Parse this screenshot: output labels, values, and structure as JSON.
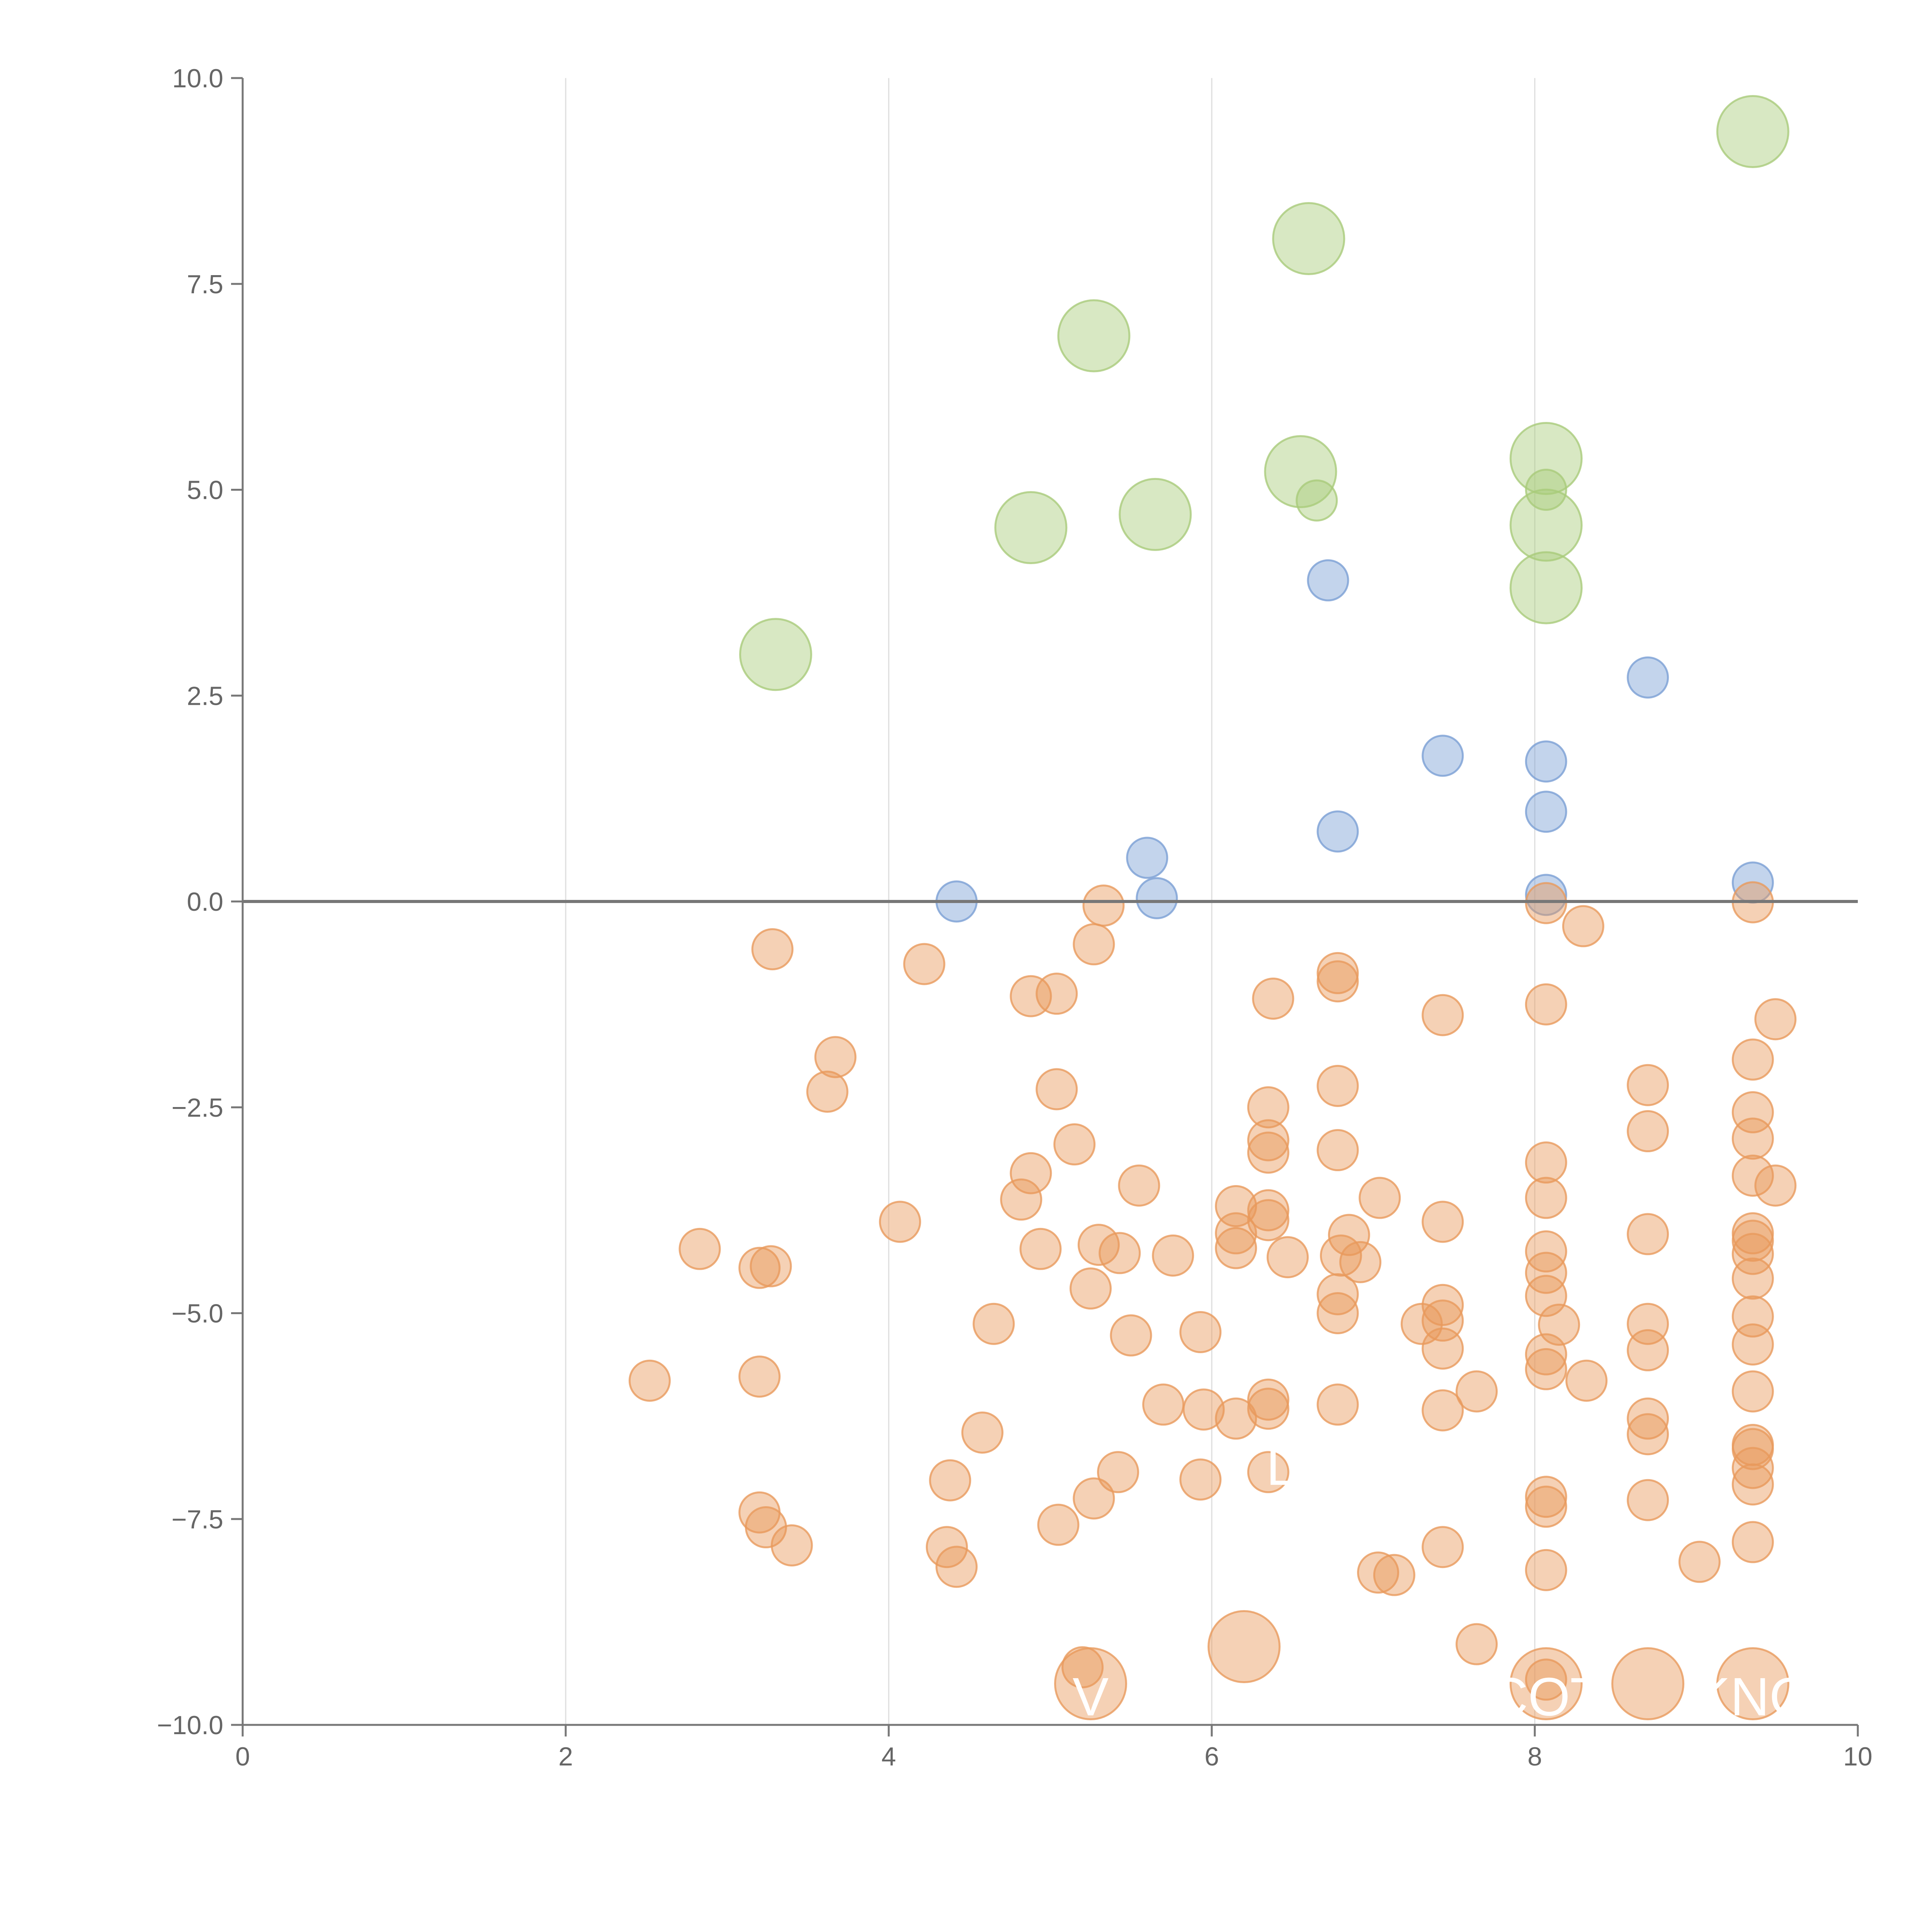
{
  "chart_data": {
    "type": "scatter",
    "title": "",
    "xlabel": "",
    "ylabel": "",
    "xlim": [
      0,
      10
    ],
    "ylim": [
      -10,
      10
    ],
    "x_ticks": [
      "0",
      "2",
      "4",
      "6",
      "8",
      "10"
    ],
    "y_ticks": [
      "−10.0",
      "−7.5",
      "−5.0",
      "−2.5",
      "0.0",
      "2.5",
      "5.0",
      "7.5",
      "10.0"
    ],
    "grid": "vertical",
    "zero_line": true,
    "colors": {
      "green": "#a9cb7a",
      "blue": "#7a9fd4",
      "orange": "#e89a5c"
    },
    "series": [
      {
        "color": "green",
        "size": "large",
        "points": [
          [
            9.35,
            9.35
          ],
          [
            6.6,
            8.05
          ],
          [
            5.27,
            6.87
          ],
          [
            8.07,
            5.38
          ],
          [
            6.55,
            5.22
          ],
          [
            5.65,
            4.7
          ],
          [
            4.88,
            4.54
          ],
          [
            8.07,
            4.57
          ],
          [
            8.07,
            3.81
          ],
          [
            3.3,
            3.0
          ]
        ]
      },
      {
        "color": "green",
        "size": "small",
        "points": [
          [
            6.65,
            4.87
          ],
          [
            8.07,
            5.0
          ]
        ]
      },
      {
        "color": "blue",
        "size": "small",
        "points": [
          [
            6.72,
            3.9
          ],
          [
            8.7,
            2.72
          ],
          [
            7.43,
            1.77
          ],
          [
            8.07,
            1.7
          ],
          [
            8.07,
            1.09
          ],
          [
            6.78,
            0.85
          ],
          [
            5.6,
            0.53
          ],
          [
            5.66,
            0.04
          ],
          [
            4.42,
            0.0
          ],
          [
            8.07,
            0.08
          ],
          [
            9.35,
            0.23
          ]
        ]
      },
      {
        "color": "orange",
        "size": "small",
        "points": [
          [
            5.33,
            -0.05
          ],
          [
            8.07,
            -0.02
          ],
          [
            9.35,
            -0.01
          ],
          [
            8.3,
            -0.3
          ],
          [
            3.28,
            -0.58
          ],
          [
            4.22,
            -0.76
          ],
          [
            5.27,
            -0.52
          ],
          [
            6.78,
            -0.87
          ],
          [
            6.78,
            -0.97
          ],
          [
            4.88,
            -1.15
          ],
          [
            5.04,
            -1.12
          ],
          [
            6.38,
            -1.18
          ],
          [
            8.07,
            -1.25
          ],
          [
            7.43,
            -1.38
          ],
          [
            9.49,
            -1.43
          ],
          [
            3.67,
            -1.89
          ],
          [
            9.35,
            -1.92
          ],
          [
            3.62,
            -2.31
          ],
          [
            5.04,
            -2.28
          ],
          [
            6.78,
            -2.24
          ],
          [
            8.7,
            -2.23
          ],
          [
            6.35,
            -2.5
          ],
          [
            9.35,
            -2.56
          ],
          [
            8.7,
            -2.79
          ],
          [
            6.35,
            -2.9
          ],
          [
            9.35,
            -2.88
          ],
          [
            5.15,
            -2.95
          ],
          [
            6.35,
            -3.05
          ],
          [
            6.78,
            -3.02
          ],
          [
            8.07,
            -3.17
          ],
          [
            4.88,
            -3.3
          ],
          [
            9.35,
            -3.33
          ],
          [
            5.55,
            -3.45
          ],
          [
            9.49,
            -3.45
          ],
          [
            4.82,
            -3.62
          ],
          [
            7.04,
            -3.6
          ],
          [
            8.07,
            -3.6
          ],
          [
            6.15,
            -3.7
          ],
          [
            6.35,
            -3.75
          ],
          [
            6.35,
            -3.87
          ],
          [
            4.07,
            -3.89
          ],
          [
            7.43,
            -3.89
          ],
          [
            8.7,
            -4.04
          ],
          [
            9.35,
            -4.03
          ],
          [
            6.15,
            -4.03
          ],
          [
            6.85,
            -4.05
          ],
          [
            2.83,
            -4.22
          ],
          [
            4.94,
            -4.22
          ],
          [
            5.3,
            -4.17
          ],
          [
            6.15,
            -4.21
          ],
          [
            9.35,
            -4.12
          ],
          [
            5.43,
            -4.27
          ],
          [
            5.76,
            -4.3
          ],
          [
            6.47,
            -4.32
          ],
          [
            6.8,
            -4.3
          ],
          [
            8.07,
            -4.25
          ],
          [
            9.35,
            -4.28
          ],
          [
            6.92,
            -4.38
          ],
          [
            3.2,
            -4.45
          ],
          [
            3.27,
            -4.43
          ],
          [
            8.07,
            -4.51
          ],
          [
            9.35,
            -4.58
          ],
          [
            5.25,
            -4.7
          ],
          [
            6.78,
            -4.77
          ],
          [
            8.07,
            -4.79
          ],
          [
            7.43,
            -4.9
          ],
          [
            6.78,
            -5.0
          ],
          [
            9.35,
            -5.04
          ],
          [
            7.43,
            -5.09
          ],
          [
            4.65,
            -5.13
          ],
          [
            7.3,
            -5.13
          ],
          [
            8.7,
            -5.13
          ],
          [
            8.15,
            -5.14
          ],
          [
            5.93,
            -5.23
          ],
          [
            5.5,
            -5.27
          ],
          [
            9.35,
            -5.38
          ],
          [
            7.43,
            -5.43
          ],
          [
            8.7,
            -5.45
          ],
          [
            8.07,
            -5.5
          ],
          [
            8.07,
            -5.68
          ],
          [
            2.52,
            -5.82
          ],
          [
            3.2,
            -5.77
          ],
          [
            8.32,
            -5.82
          ],
          [
            7.64,
            -5.95
          ],
          [
            9.35,
            -5.95
          ],
          [
            6.35,
            -6.05
          ],
          [
            5.7,
            -6.11
          ],
          [
            6.78,
            -6.11
          ],
          [
            5.95,
            -6.17
          ],
          [
            7.43,
            -6.18
          ],
          [
            6.35,
            -6.16
          ],
          [
            6.15,
            -6.28
          ],
          [
            8.7,
            -6.28
          ],
          [
            4.58,
            -6.45
          ],
          [
            8.7,
            -6.47
          ],
          [
            9.35,
            -6.6
          ],
          [
            9.35,
            -6.65
          ],
          [
            9.35,
            -6.88
          ],
          [
            5.42,
            -6.93
          ],
          [
            6.35,
            -6.93
          ],
          [
            4.38,
            -7.03
          ],
          [
            5.93,
            -7.02
          ],
          [
            9.35,
            -7.08
          ],
          [
            5.27,
            -7.25
          ],
          [
            8.07,
            -7.23
          ],
          [
            8.7,
            -7.27
          ],
          [
            8.07,
            -7.35
          ],
          [
            3.2,
            -7.42
          ],
          [
            5.05,
            -7.57
          ],
          [
            3.24,
            -7.6
          ],
          [
            3.4,
            -7.82
          ],
          [
            9.35,
            -7.78
          ],
          [
            4.36,
            -7.84
          ],
          [
            7.43,
            -7.84
          ],
          [
            9.02,
            -8.02
          ],
          [
            4.42,
            -8.08
          ],
          [
            8.07,
            -8.12
          ],
          [
            7.03,
            -8.15
          ],
          [
            7.13,
            -8.18
          ],
          [
            7.64,
            -9.02
          ],
          [
            5.2,
            -9.3
          ],
          [
            8.07,
            -9.45
          ]
        ]
      },
      {
        "color": "orange",
        "size": "large",
        "points": [
          [
            6.2,
            -9.05
          ],
          [
            5.25,
            -9.5
          ],
          [
            8.07,
            -9.5
          ],
          [
            8.7,
            -9.5
          ],
          [
            9.35,
            -9.5
          ]
        ]
      }
    ],
    "annotations": [
      {
        "text": "V",
        "x": 5.25,
        "y": -9.65
      },
      {
        "text": "L",
        "x": 6.43,
        "y": -6.85
      },
      {
        "text": "COT",
        "x": 8.07,
        "y": -9.65
      },
      {
        "text": "KNO",
        "x": 9.35,
        "y": -9.65
      }
    ]
  }
}
